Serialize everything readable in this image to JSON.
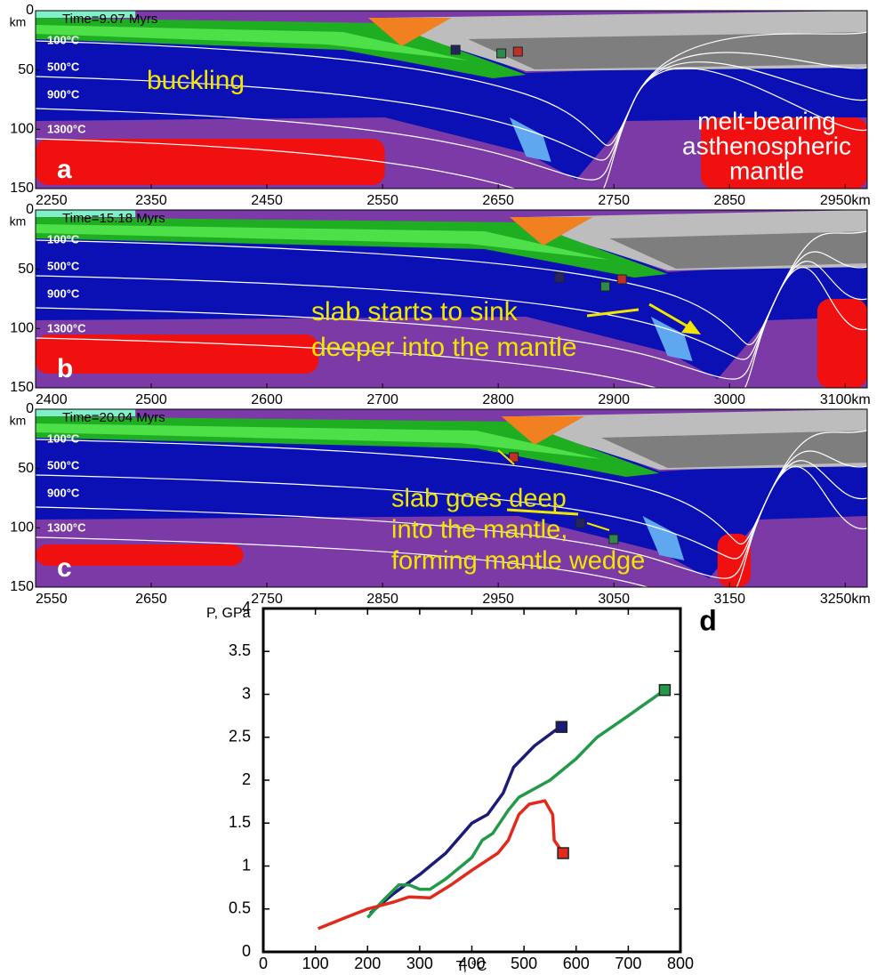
{
  "chart_data": [
    {
      "type": "model",
      "title": "Time=9.07 Myrs",
      "panel_label": "a",
      "y_unit": "km",
      "isotherm_labels": [
        "100°C",
        "500°C",
        "900°C",
        "1300°C"
      ],
      "annotations": [
        "buckling",
        "melt-bearing",
        "asthenospheric",
        "mantle"
      ],
      "xlim": [
        2250,
        2969
      ],
      "xticks": [
        2250,
        2350,
        2450,
        2550,
        2650,
        2750,
        2850,
        {
          "value": 2950,
          "label": "2950km"
        }
      ],
      "ylim": [
        0,
        150
      ],
      "yticks": [
        0,
        50,
        100,
        150
      ]
    },
    {
      "type": "model",
      "title": "Time=15.18 Myrs",
      "panel_label": "b",
      "y_unit": "km",
      "isotherm_labels": [
        "100°C",
        "500°C",
        "900°C",
        "1300°C"
      ],
      "annotations": [
        "slab starts to sink",
        "deeper into the mantle"
      ],
      "xlim": [
        2400,
        3119
      ],
      "xticks": [
        2400,
        2500,
        2600,
        2700,
        2800,
        2900,
        3000,
        {
          "value": 3100,
          "label": "3100km"
        }
      ],
      "ylim": [
        0,
        150
      ],
      "yticks": [
        0,
        50,
        100,
        150
      ]
    },
    {
      "type": "model",
      "title": "Time=20.04 Myrs",
      "panel_label": "c",
      "y_unit": "km",
      "isotherm_labels": [
        "100°C",
        "500°C",
        "900°C",
        "1300°C"
      ],
      "annotations": [
        "slab goes deep",
        "into the mantle,",
        "forming mantle wedge"
      ],
      "xlim": [
        2550,
        3269
      ],
      "xticks": [
        2550,
        2650,
        2750,
        2850,
        2950,
        3050,
        3150,
        {
          "value": 3250,
          "label": "3250km"
        }
      ],
      "ylim": [
        0,
        150
      ],
      "yticks": [
        0,
        50,
        100,
        150
      ]
    },
    {
      "type": "line",
      "panel_label": "d",
      "y_label": "P, GPa",
      "x_label": "T, °C",
      "xlim": [
        0,
        800
      ],
      "xticks": [
        0,
        100,
        200,
        300,
        400,
        500,
        600,
        700,
        800
      ],
      "ylim": [
        0,
        4
      ],
      "yticks": [
        0,
        0.5,
        1,
        1.5,
        2,
        2.5,
        3,
        3.5,
        4
      ],
      "series": [
        {
          "color": "#1c1c78",
          "x": [
            205,
            250,
            300,
            350,
            400,
            430,
            460,
            480,
            520,
            560,
            572
          ],
          "values": [
            0.45,
            0.68,
            0.9,
            1.15,
            1.5,
            1.6,
            1.85,
            2.15,
            2.4,
            2.58,
            2.62
          ]
        },
        {
          "color": "#23994a",
          "x": [
            200,
            230,
            260,
            280,
            300,
            320,
            350,
            400,
            420,
            440,
            470,
            490,
            550,
            600,
            640,
            700,
            730,
            770
          ],
          "values": [
            0.4,
            0.6,
            0.78,
            0.78,
            0.73,
            0.73,
            0.85,
            1.1,
            1.3,
            1.38,
            1.65,
            1.8,
            2.0,
            2.25,
            2.5,
            2.75,
            2.88,
            3.05
          ]
        },
        {
          "color": "#e02a1c",
          "x": [
            105,
            150,
            200,
            250,
            280,
            320,
            360,
            400,
            450,
            470,
            490,
            510,
            540,
            555,
            558,
            575
          ],
          "values": [
            0.27,
            0.38,
            0.5,
            0.58,
            0.64,
            0.63,
            0.78,
            0.95,
            1.15,
            1.3,
            1.6,
            1.72,
            1.76,
            1.6,
            1.3,
            1.15
          ]
        }
      ]
    }
  ]
}
